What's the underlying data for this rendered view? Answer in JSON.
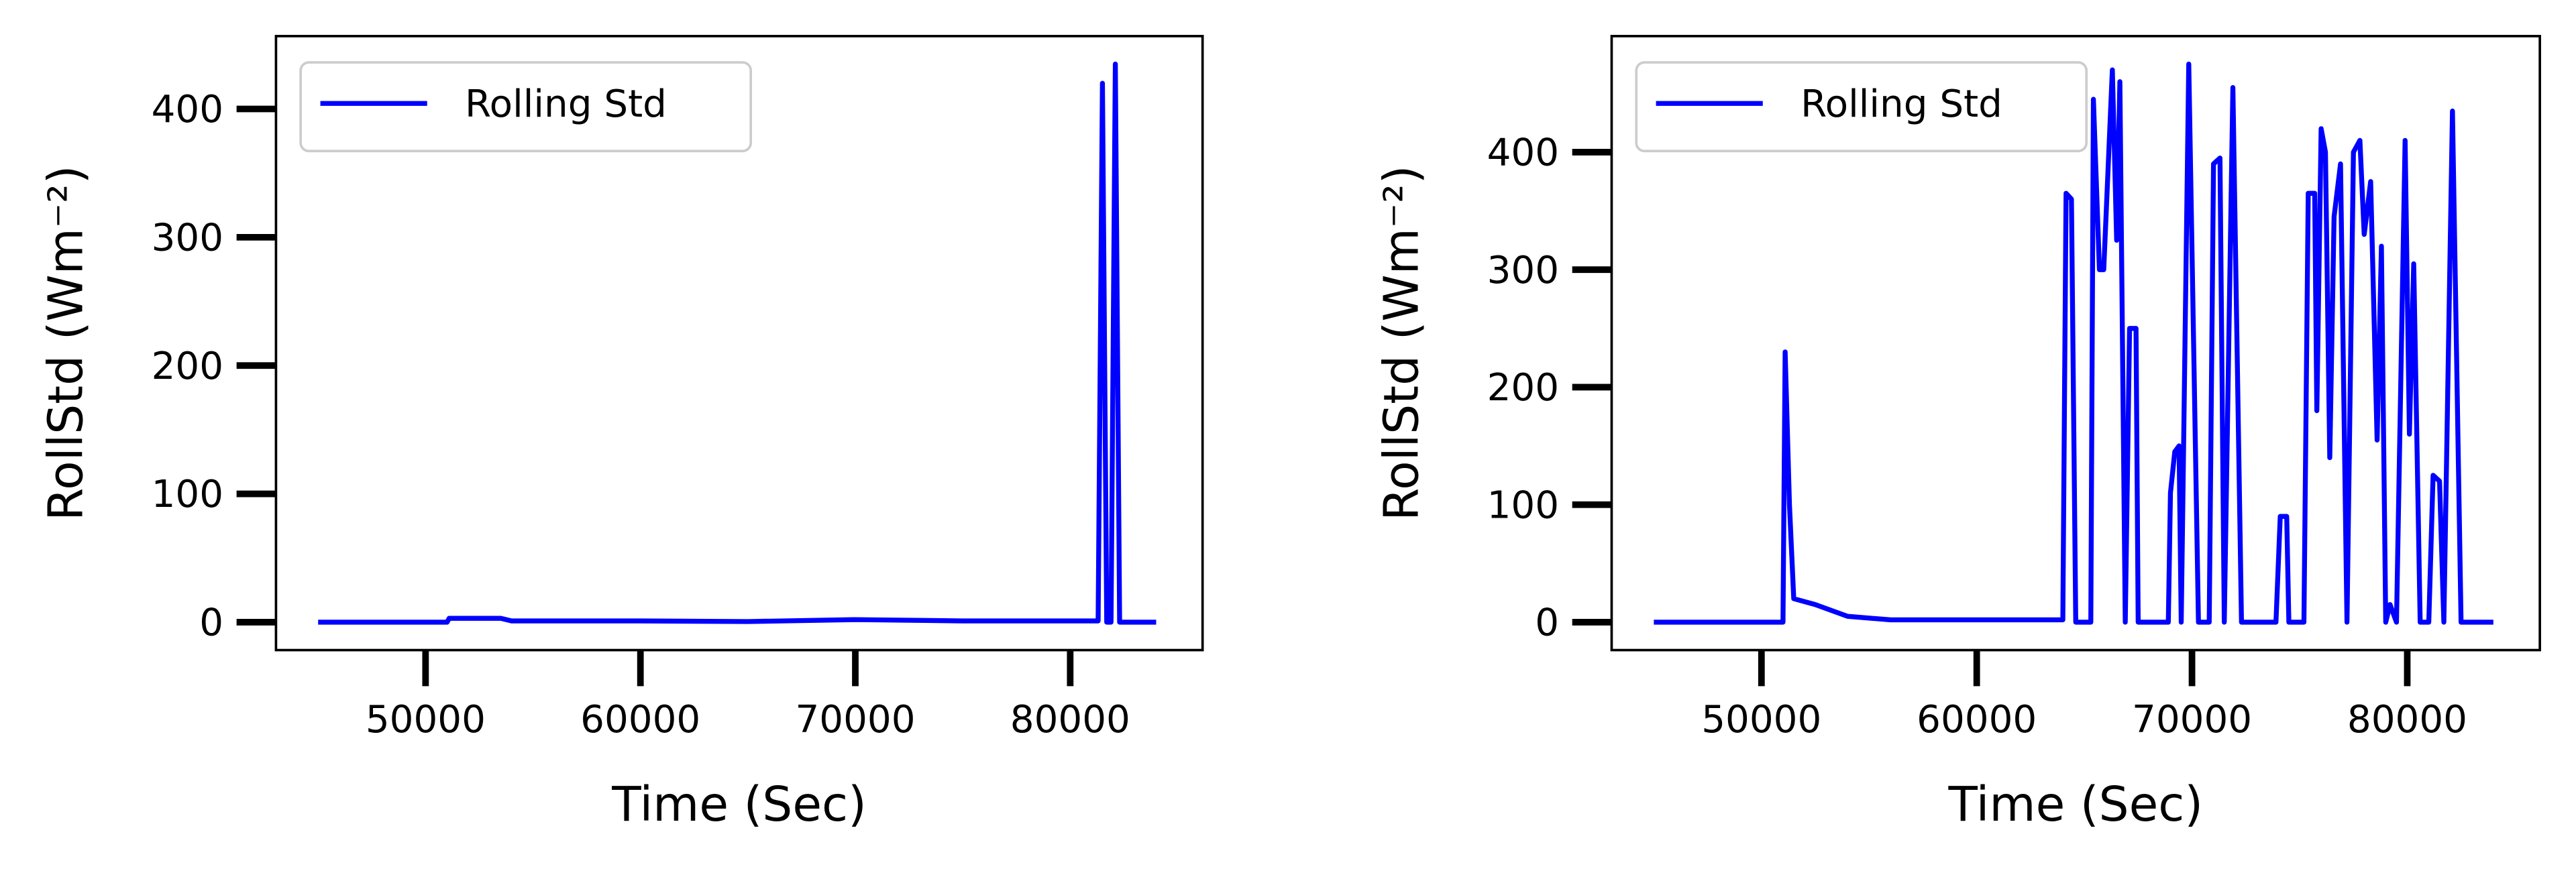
{
  "chart_data": [
    {
      "type": "line",
      "xlabel": "Time (Sec)",
      "ylabel": "RollStd (Wm⁻²)",
      "xlim": [
        43040,
        86160
      ],
      "ylim": [
        -21.75,
        456.75
      ],
      "xticks": [
        50000,
        60000,
        70000,
        80000
      ],
      "yticks": [
        0,
        100,
        200,
        300,
        400
      ],
      "legend": "upper left",
      "x": [
        45000,
        51000,
        51100,
        53500,
        54000,
        60000,
        65000,
        70000,
        75000,
        81300,
        81500,
        81700,
        81900,
        82100,
        82300,
        84000
      ],
      "series": [
        {
          "name": "Rolling Std",
          "color": "#0000ff",
          "values": [
            0,
            0,
            3,
            3,
            1,
            1,
            0.5,
            2,
            1,
            1,
            420,
            0,
            0,
            435,
            0,
            0
          ]
        }
      ]
    },
    {
      "type": "line",
      "xlabel": "Time (Sec)",
      "ylabel": "RollStd (Wm⁻²)",
      "xlim": [
        43040,
        86160
      ],
      "ylim": [
        -23.75,
        498.75
      ],
      "xticks": [
        50000,
        60000,
        70000,
        80000
      ],
      "yticks": [
        0,
        100,
        200,
        300,
        400
      ],
      "legend": "upper left",
      "x": [
        45000,
        51000,
        51100,
        51300,
        51500,
        52500,
        54000,
        56000,
        64000,
        64150,
        64400,
        64600,
        65300,
        65420,
        65700,
        65900,
        66300,
        66500,
        66650,
        66900,
        67100,
        67400,
        67500,
        68900,
        69000,
        69200,
        69400,
        69500,
        69850,
        70300,
        70800,
        71000,
        71300,
        71500,
        71900,
        72300,
        73900,
        74100,
        74400,
        74500,
        75200,
        75400,
        75700,
        75800,
        76000,
        76200,
        76400,
        76600,
        76900,
        77200,
        77500,
        77800,
        78000,
        78300,
        78600,
        78800,
        79000,
        79200,
        79500,
        79900,
        80100,
        80300,
        80600,
        81000,
        81200,
        81500,
        81700,
        82100,
        82500,
        84000
      ],
      "series": [
        {
          "name": "Rolling Std",
          "color": "#0000ff",
          "values": [
            0,
            0,
            230,
            100,
            20,
            15,
            5,
            2,
            2,
            365,
            360,
            0,
            0,
            445,
            300,
            300,
            470,
            325,
            460,
            0,
            250,
            250,
            0,
            0,
            110,
            145,
            150,
            0,
            475,
            0,
            0,
            390,
            395,
            0,
            455,
            0,
            0,
            90,
            90,
            0,
            0,
            365,
            365,
            180,
            420,
            400,
            140,
            345,
            390,
            0,
            400,
            410,
            330,
            375,
            155,
            320,
            0,
            15,
            0,
            410,
            160,
            305,
            0,
            0,
            125,
            120,
            0,
            435,
            0,
            0
          ]
        }
      ]
    }
  ]
}
